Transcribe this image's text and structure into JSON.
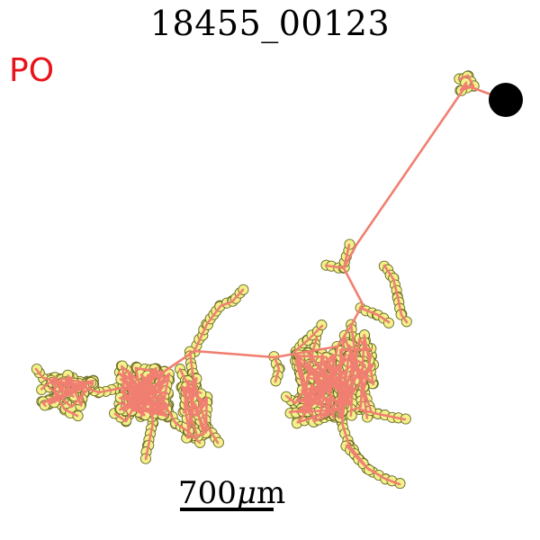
{
  "title": "18455_00123",
  "label": "PO",
  "scale_bar": {
    "value": "700",
    "mu": "μ",
    "unit": "m"
  },
  "colors": {
    "branch": "#f07f72",
    "node_fill": "#f3f18a",
    "node_stroke": "#6c6c2a",
    "soma": "#000000",
    "label": "#e8141b"
  }
}
